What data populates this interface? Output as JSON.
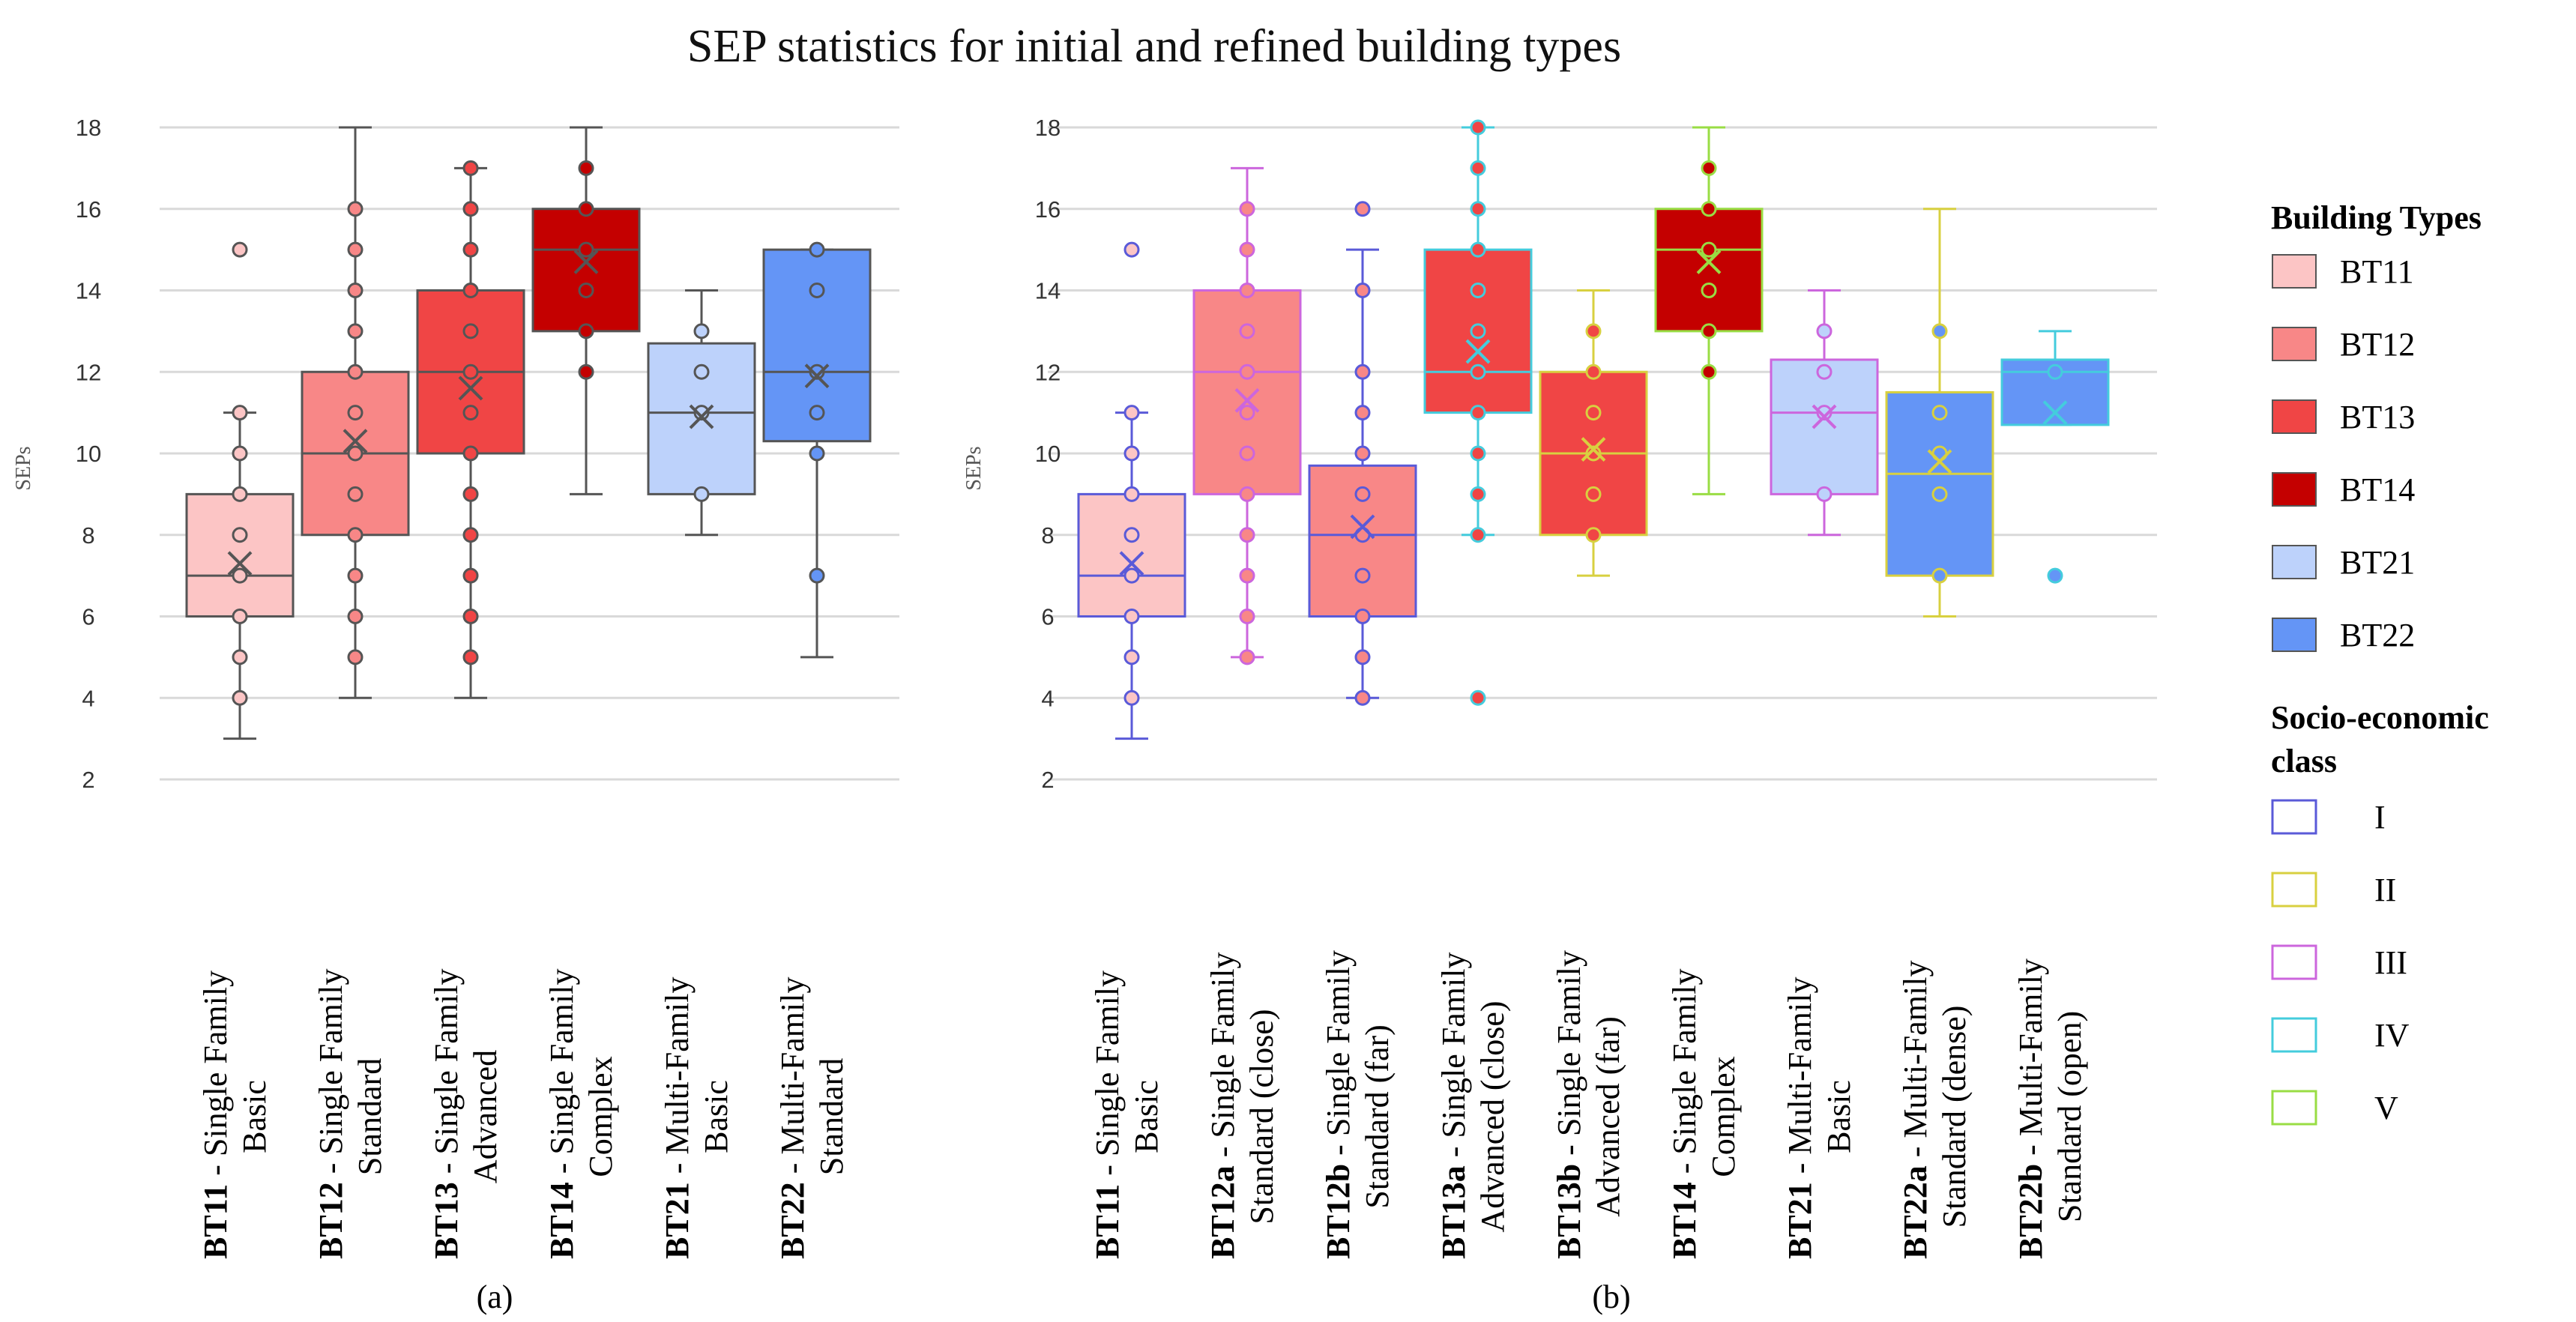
{
  "title": "SEP statistics for initial and refined building types",
  "chart_data": [
    {
      "type": "box",
      "panel_label": "(a)",
      "ylabel": "SEPs",
      "ylim": [
        2,
        18
      ],
      "yticks": [
        2,
        4,
        6,
        8,
        10,
        12,
        14,
        16,
        18
      ],
      "grid": true,
      "series": [
        {
          "code": "BT11",
          "rest": " - Single Family",
          "line2": "Basic",
          "fill": "#fcc5c5",
          "stroke": "#555555",
          "whisker": [
            3,
            11
          ],
          "box": [
            6,
            9
          ],
          "median": 7,
          "mean": 7.3,
          "points": [
            4,
            5,
            6,
            7,
            8,
            9,
            10,
            11,
            15
          ]
        },
        {
          "code": "BT12",
          "rest": " - Single Family",
          "line2": "Standard",
          "fill": "#f88787",
          "stroke": "#555555",
          "whisker": [
            4,
            18
          ],
          "box": [
            8,
            12
          ],
          "median": 10,
          "mean": 10.3,
          "points": [
            5,
            6,
            7,
            8,
            9,
            10,
            11,
            12,
            13,
            14,
            15,
            16
          ]
        },
        {
          "code": "BT13",
          "rest": " - Single Family",
          "line2": "Advanced",
          "fill": "#f04545",
          "stroke": "#555555",
          "whisker": [
            4,
            17
          ],
          "box": [
            10,
            14
          ],
          "median": 12,
          "mean": 11.6,
          "points": [
            5,
            6,
            7,
            8,
            9,
            10,
            11,
            12,
            13,
            14,
            15,
            16,
            17
          ]
        },
        {
          "code": "BT14",
          "rest": " - Single Family",
          "line2": "Complex",
          "fill": "#c40000",
          "stroke": "#555555",
          "whisker": [
            9,
            18
          ],
          "box": [
            13,
            16
          ],
          "median": 15,
          "mean": 14.7,
          "points": [
            12,
            13,
            14,
            15,
            16,
            17
          ]
        },
        {
          "code": "BT21",
          "rest": " - Multi-Family",
          "line2": "Basic",
          "fill": "#bdd2fb",
          "stroke": "#555555",
          "whisker": [
            8,
            14
          ],
          "box": [
            9,
            12.7
          ],
          "median": 11,
          "mean": 10.9,
          "points": [
            9,
            11,
            12,
            13
          ]
        },
        {
          "code": "BT22",
          "rest": " - Multi-Family",
          "line2": "Standard",
          "fill": "#6495f6",
          "stroke": "#555555",
          "whisker": [
            5,
            15
          ],
          "box": [
            10.3,
            15
          ],
          "median": 12,
          "mean": 11.9,
          "points": [
            7,
            10,
            11,
            12,
            14,
            15
          ]
        }
      ]
    },
    {
      "type": "box",
      "panel_label": "(b)",
      "ylabel": "SEPs",
      "ylim": [
        2,
        18
      ],
      "yticks": [
        2,
        4,
        6,
        8,
        10,
        12,
        14,
        16,
        18
      ],
      "grid": true,
      "series": [
        {
          "code": "BT11",
          "rest": " - Single Family",
          "line2": "Basic",
          "fill": "#fcc5c5",
          "stroke": "#5a5ad8",
          "whisker": [
            3,
            11
          ],
          "box": [
            6,
            9
          ],
          "median": 7,
          "mean": 7.3,
          "points": [
            4,
            5,
            6,
            7,
            8,
            9,
            10,
            11,
            15
          ]
        },
        {
          "code": "BT12a",
          "rest": " - Single Family",
          "line2": "Standard (close)",
          "fill": "#f88787",
          "stroke": "#cc66dd",
          "whisker": [
            5,
            17
          ],
          "box": [
            9,
            14
          ],
          "median": 12,
          "mean": 11.3,
          "points": [
            5,
            6,
            7,
            8,
            9,
            10,
            11,
            12,
            13,
            14,
            15,
            16
          ]
        },
        {
          "code": "BT12b",
          "rest": " - Single Family",
          "line2": "Standard (far)",
          "fill": "#f88787",
          "stroke": "#5a5ad8",
          "whisker": [
            4,
            15
          ],
          "box": [
            6,
            9.7
          ],
          "median": 8,
          "mean": 8.2,
          "points": [
            4,
            5,
            6,
            7,
            8,
            9,
            10,
            11,
            12,
            14,
            16
          ]
        },
        {
          "code": "BT13a",
          "rest": " - Single Family",
          "line2": "Advanced (close)",
          "fill": "#f04545",
          "stroke": "#44ccdd",
          "whisker": [
            8,
            18
          ],
          "box": [
            11,
            15
          ],
          "median": 12,
          "mean": 12.5,
          "points": [
            4,
            8,
            9,
            10,
            11,
            12,
            13,
            14,
            15,
            16,
            17,
            18
          ]
        },
        {
          "code": "BT13b",
          "rest": " - Single Family",
          "line2": "Advanced (far)",
          "fill": "#f04545",
          "stroke": "#d8d040",
          "whisker": [
            7,
            14
          ],
          "box": [
            8,
            12
          ],
          "median": 10,
          "mean": 10.1,
          "points": [
            8,
            9,
            10,
            11,
            12,
            13
          ]
        },
        {
          "code": "BT14",
          "rest": " - Single Family",
          "line2": "Complex",
          "fill": "#c40000",
          "stroke": "#99dd44",
          "whisker": [
            9,
            18
          ],
          "box": [
            13,
            16
          ],
          "median": 15,
          "mean": 14.7,
          "points": [
            12,
            13,
            14,
            15,
            16,
            17
          ]
        },
        {
          "code": "BT21",
          "rest": " - Multi-Family",
          "line2": "Basic",
          "fill": "#bdd2fb",
          "stroke": "#cc66dd",
          "whisker": [
            8,
            14
          ],
          "box": [
            9,
            12.3
          ],
          "median": 11,
          "mean": 10.9,
          "points": [
            9,
            11,
            12,
            13
          ]
        },
        {
          "code": "BT22a",
          "rest": " - Multi-Family",
          "line2": "Standard (dense)",
          "fill": "#6495f6",
          "stroke": "#d8d040",
          "whisker": [
            6,
            16
          ],
          "box": [
            7,
            11.5
          ],
          "median": 9.5,
          "mean": 9.8,
          "points": [
            7,
            9,
            10,
            11,
            13
          ]
        },
        {
          "code": "BT22b",
          "rest": " - Multi-Family",
          "line2": "Standard (open)",
          "fill": "#6495f6",
          "stroke": "#44ccdd",
          "whisker": [
            10.7,
            13
          ],
          "box": [
            10.7,
            12.3
          ],
          "median": 12,
          "mean": 11,
          "points": [
            7,
            12
          ]
        }
      ]
    }
  ],
  "legend": {
    "types_heading": "Building Types",
    "types": [
      {
        "label": "BT11",
        "color": "#fcc5c5"
      },
      {
        "label": "BT12",
        "color": "#f88787"
      },
      {
        "label": "BT13",
        "color": "#f04545"
      },
      {
        "label": "BT14",
        "color": "#c40000"
      },
      {
        "label": "BT21",
        "color": "#bdd2fb"
      },
      {
        "label": "BT22",
        "color": "#6495f6"
      }
    ],
    "class_heading_1": "Socio-economic",
    "class_heading_2": "class",
    "classes": [
      {
        "label": "I",
        "color": "#5a5ad8"
      },
      {
        "label": "II",
        "color": "#d8d040"
      },
      {
        "label": "III",
        "color": "#cc66dd"
      },
      {
        "label": "IV",
        "color": "#44ccdd"
      },
      {
        "label": "V",
        "color": "#99dd44"
      }
    ]
  }
}
